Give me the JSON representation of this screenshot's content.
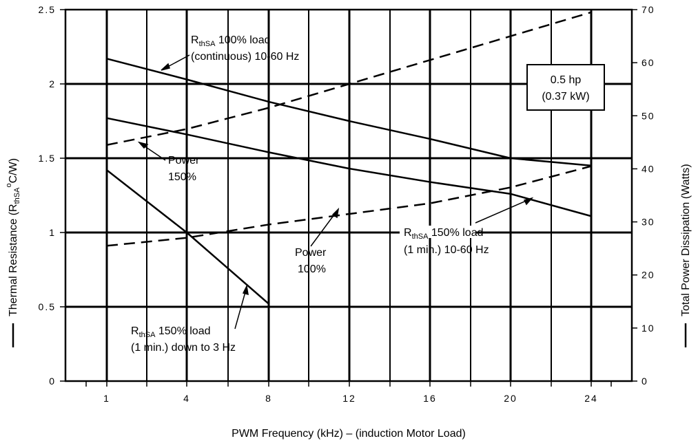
{
  "chart_data": {
    "type": "line",
    "xlabel": "PWM Frequency (kHz) – (induction Motor Load)",
    "ylabel_left": {
      "main": "Thermal Resistance (R",
      "sub": "thSA",
      "sup": "o",
      "unit": "C/W)"
    },
    "ylabel_right": "Total Power Dissipation (Watts)",
    "x_ticks": [
      "1",
      "4",
      "8",
      "12",
      "16",
      "20",
      "24"
    ],
    "y_left_ticks": [
      "0",
      "0.5",
      "1",
      "1.5",
      "2",
      "2.5"
    ],
    "y_right_ticks": [
      "0",
      "10",
      "20",
      "30",
      "40",
      "50",
      "60",
      "70"
    ],
    "ylim_left": [
      0,
      2.5
    ],
    "ylim_right": [
      0,
      70
    ],
    "grid": true,
    "x_positions_note_free": true,
    "series": [
      {
        "axis": "left",
        "style": "solid",
        "x": [
          1,
          4,
          8,
          12,
          16,
          20,
          24
        ],
        "y": [
          2.17,
          2.03,
          1.88,
          1.75,
          1.63,
          1.5,
          1.45
        ]
      },
      {
        "axis": "left",
        "style": "solid",
        "x": [
          1,
          4,
          8,
          12,
          16,
          20,
          24
        ],
        "y": [
          1.77,
          1.66,
          1.54,
          1.43,
          1.34,
          1.26,
          1.11
        ]
      },
      {
        "axis": "left",
        "style": "solid",
        "x": [
          1,
          4,
          8
        ],
        "y": [
          1.42,
          1.0,
          0.52
        ]
      },
      {
        "axis": "right",
        "style": "dashed",
        "x": [
          1,
          4,
          8,
          12,
          16,
          20,
          24
        ],
        "y": [
          44.5,
          47.5,
          51.5,
          56,
          60.5,
          65,
          69.5
        ]
      },
      {
        "axis": "right",
        "style": "dashed",
        "x": [
          1,
          4,
          8,
          12,
          16,
          20,
          24
        ],
        "y": [
          25.5,
          27,
          29.5,
          31.5,
          33.5,
          36.5,
          40.5
        ]
      }
    ],
    "annotations": {
      "r100": {
        "pre": "R",
        "sub": "thSA",
        "post": " 100% load",
        "line2": "(continuous) 10-60 Hz"
      },
      "power150": {
        "line1": "Power",
        "line2": "150%"
      },
      "power100": {
        "line1": "Power",
        "line2": "100%"
      },
      "r150a": {
        "pre": "R",
        "sub": "thSA",
        "post": " 150% load",
        "line2": "(1 min.) 10-60 Hz"
      },
      "r150b": {
        "pre": "R",
        "sub": "thSA",
        "post": " 150% load",
        "line2": "(1 min.) down to 3 Hz"
      },
      "box": {
        "line1": "0.5 hp",
        "line2": "(0.37 kW)"
      }
    }
  }
}
